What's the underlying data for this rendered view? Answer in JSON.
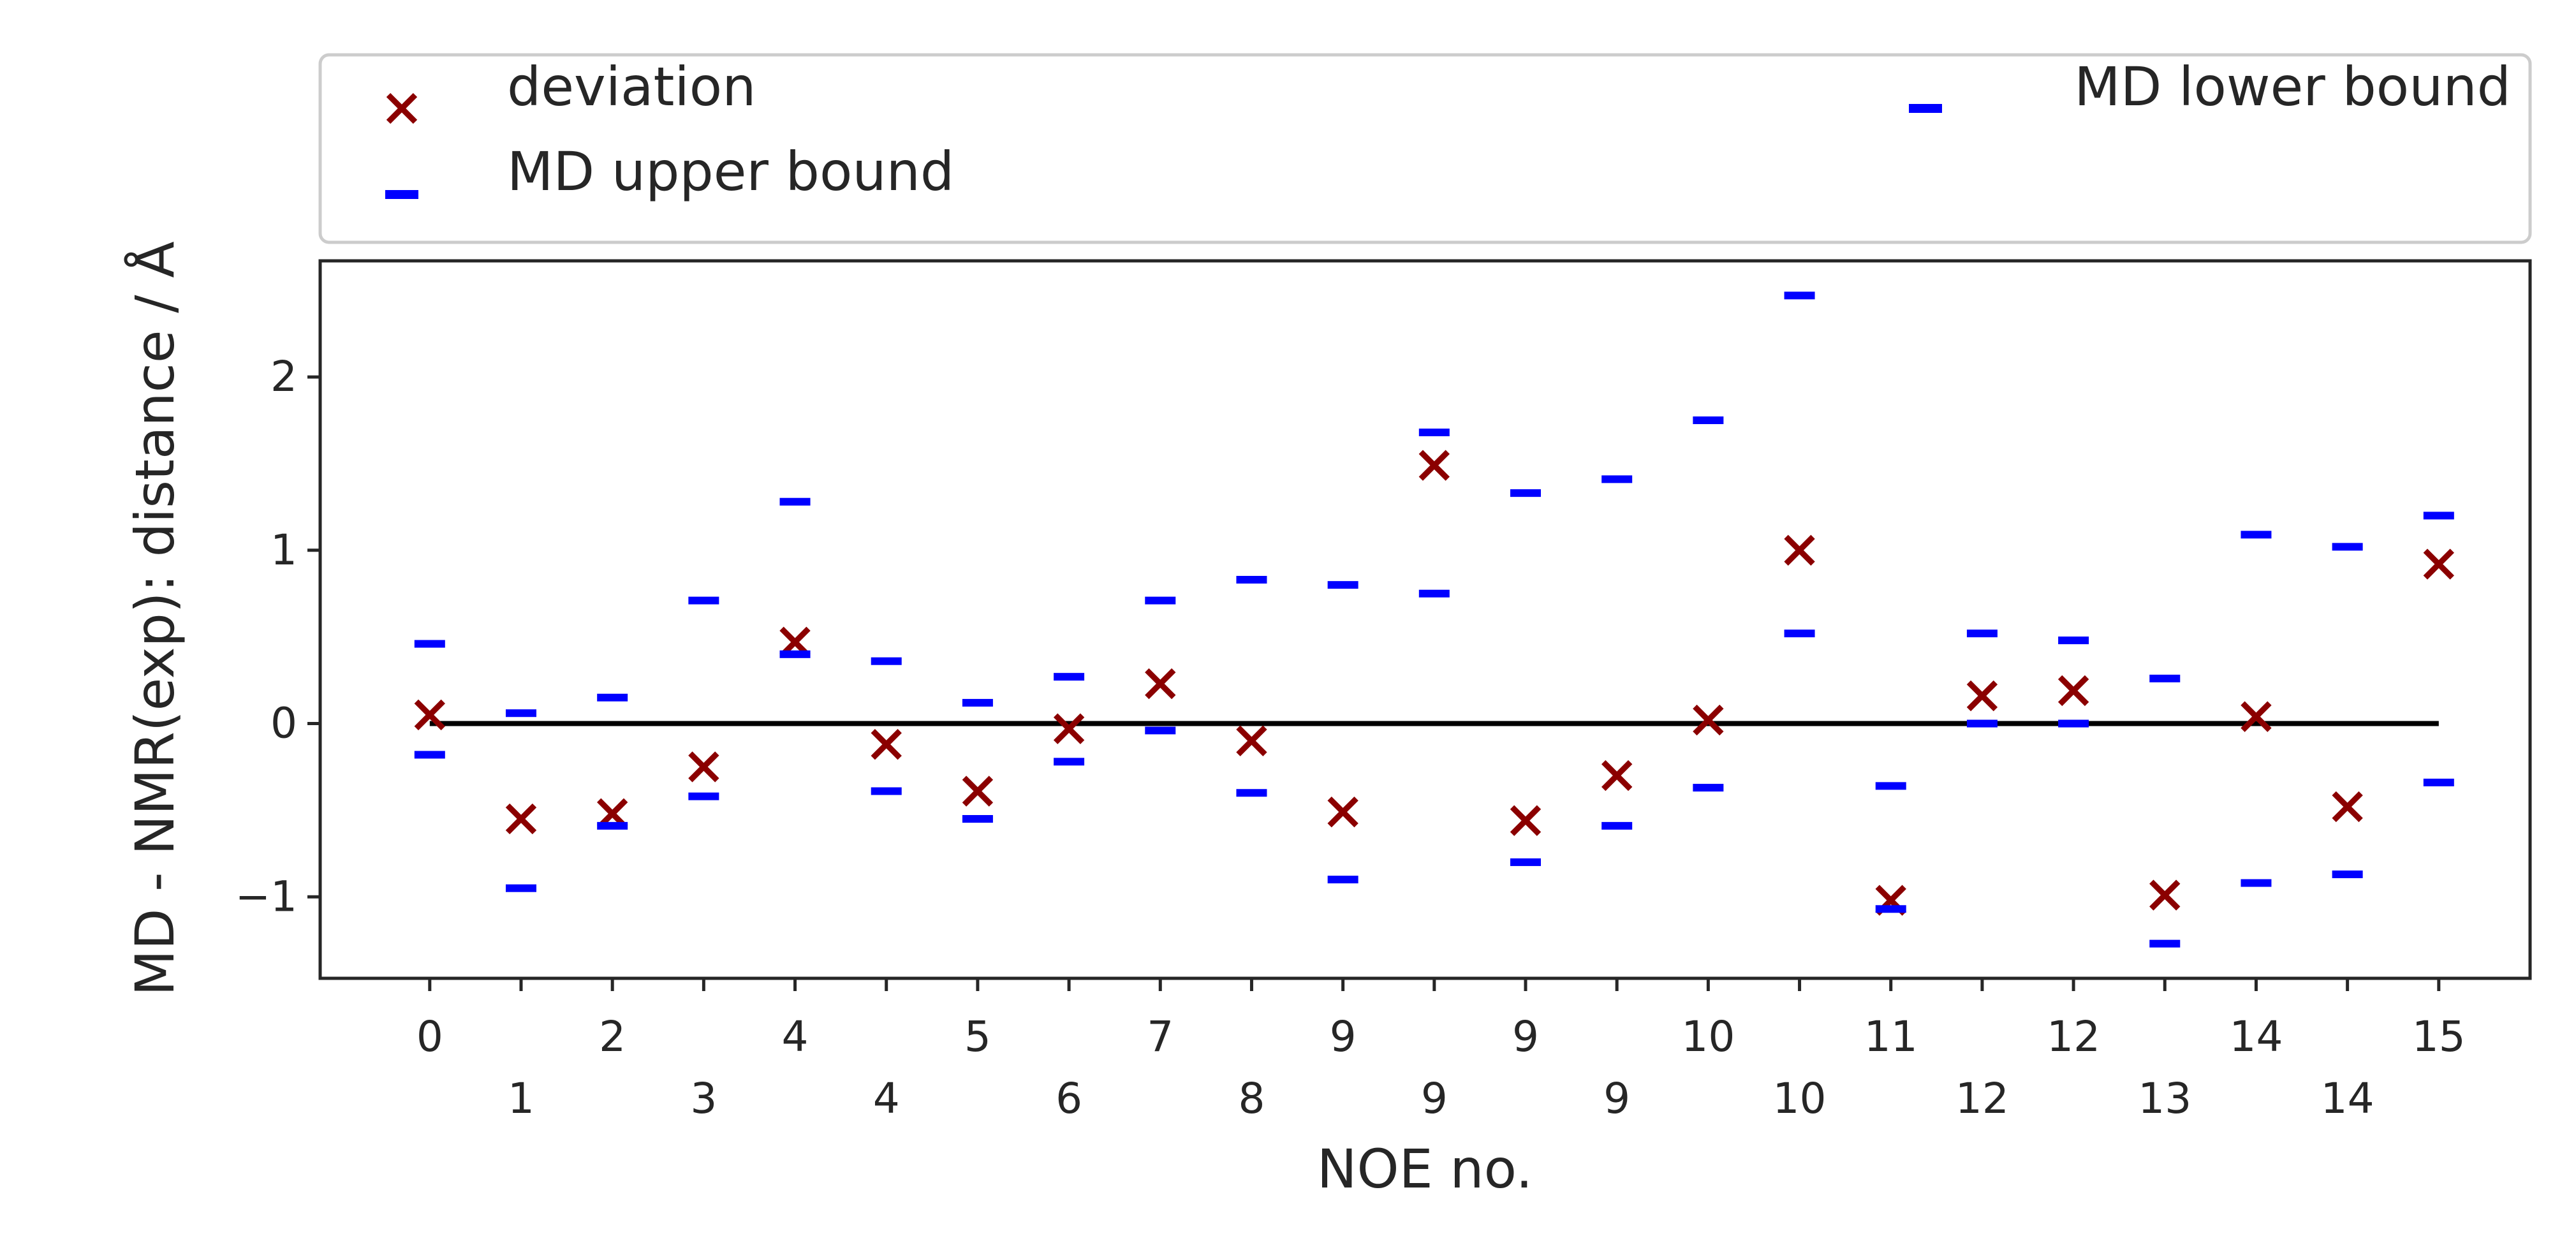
{
  "chart_data": {
    "type": "scatter",
    "title": "",
    "xlabel": "NOE no.",
    "ylabel": "MD - NMR(exp): distance / Å",
    "xlim": [
      -1.2,
      23.0
    ],
    "ylim": [
      -1.47,
      2.67
    ],
    "yticks": [
      -1,
      0,
      1,
      2
    ],
    "ytick_labels": [
      "−1",
      "0",
      "1",
      "2"
    ],
    "grid": false,
    "legend_placement": "top, outside plot",
    "reference_line": {
      "y": 0,
      "color": "#000000"
    },
    "xtick_labels_top": [
      "0",
      "2",
      "4",
      "5",
      "7",
      "9",
      "9",
      "10",
      "11",
      "12",
      "14",
      "15"
    ],
    "xtick_labels_bottom": [
      "1",
      "3",
      "4",
      "6",
      "8",
      "9",
      "9",
      "10",
      "12",
      "13",
      "14"
    ],
    "series": [
      {
        "name": "deviation",
        "marker": "x",
        "color": "#8b0000",
        "x": [
          0,
          1,
          2,
          3,
          4,
          5,
          6,
          7,
          8,
          9,
          10,
          11,
          12,
          13,
          14,
          15,
          16,
          17,
          18,
          19,
          20,
          21,
          22
        ],
        "y": [
          0.05,
          -0.55,
          -0.52,
          -0.25,
          0.47,
          -0.12,
          -0.39,
          -0.03,
          0.23,
          -0.1,
          -0.51,
          1.49,
          -0.56,
          -0.3,
          0.02,
          1.0,
          -1.02,
          0.16,
          0.19,
          -0.99,
          0.04,
          -0.48,
          0.92
        ]
      },
      {
        "name": "MD upper bound",
        "marker": "_",
        "color": "#0000ff",
        "x": [
          0,
          1,
          2,
          3,
          4,
          5,
          6,
          7,
          8,
          9,
          10,
          11,
          12,
          13,
          14,
          15,
          16,
          17,
          18,
          19,
          20,
          21,
          22
        ],
        "y": [
          0.46,
          0.06,
          0.15,
          0.71,
          1.28,
          0.36,
          0.12,
          0.27,
          0.71,
          0.83,
          0.8,
          1.68,
          1.33,
          1.41,
          1.75,
          2.47,
          -0.36,
          0.52,
          0.48,
          0.26,
          1.09,
          1.02,
          1.2
        ]
      },
      {
        "name": "MD lower bound",
        "marker": "_",
        "color": "#0000ff",
        "x": [
          0,
          1,
          2,
          3,
          4,
          5,
          6,
          7,
          8,
          9,
          10,
          11,
          12,
          13,
          14,
          15,
          16,
          17,
          18,
          19,
          20,
          21,
          22
        ],
        "y": [
          -0.18,
          -0.95,
          -0.59,
          -0.42,
          0.4,
          -0.39,
          -0.55,
          -0.22,
          -0.04,
          -0.4,
          -0.9,
          0.75,
          -0.8,
          -0.59,
          -0.37,
          0.52,
          -1.07,
          0.0,
          0.0,
          -1.27,
          -0.92,
          -0.87,
          -0.34
        ]
      }
    ]
  }
}
